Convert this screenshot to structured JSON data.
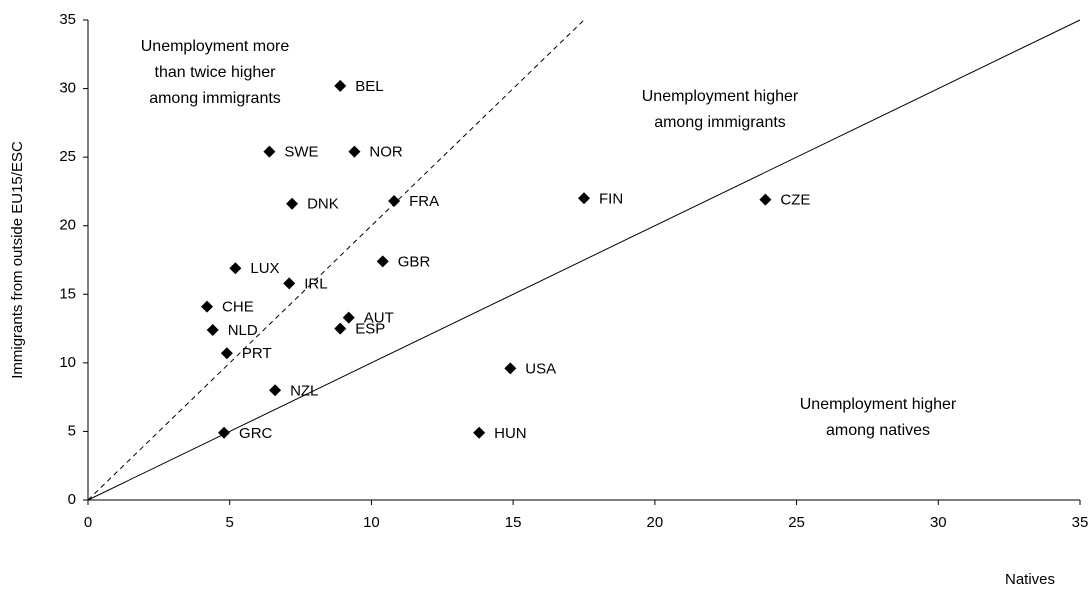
{
  "chart_data": {
    "type": "scatter",
    "x_label": "Natives",
    "y_label": "Immigrants from outside EU15/ESC",
    "labels": [
      "BEL",
      "SWE",
      "NOR",
      "DNK",
      "FRA",
      "FIN",
      "CZE",
      "LUX",
      "GBR",
      "IRL",
      "CHE",
      "AUT",
      "NLD",
      "ESP",
      "PRT",
      "USA",
      "NZL",
      "GRC",
      "HUN"
    ],
    "x": [
      8.9,
      6.4,
      9.4,
      7.2,
      10.8,
      17.5,
      23.9,
      5.2,
      10.4,
      7.1,
      4.2,
      9.2,
      4.4,
      8.9,
      4.9,
      14.9,
      6.6,
      4.8,
      13.8
    ],
    "y": [
      30.2,
      25.4,
      25.4,
      21.6,
      21.8,
      22.0,
      21.9,
      16.9,
      17.4,
      15.8,
      14.1,
      13.3,
      12.4,
      12.5,
      10.7,
      9.6,
      8.0,
      4.9,
      4.9
    ],
    "color": "#000000",
    "xlim": [
      0,
      35
    ],
    "ylim": [
      0,
      35
    ],
    "xticks": [
      0,
      5,
      10,
      15,
      20,
      25,
      30,
      35
    ],
    "yticks": [
      0,
      5,
      10,
      15,
      20,
      25,
      30,
      35
    ],
    "reference_lines": [
      {
        "slope": 1,
        "style": "solid"
      },
      {
        "slope": 2,
        "style": "dashed"
      }
    ],
    "annotations": [
      [
        "Unemployment more",
        "than twice higher",
        "among immigrants"
      ],
      [
        "Unemployment higher",
        "among immigrants"
      ],
      [
        "Unemployment higher",
        "among natives"
      ]
    ]
  }
}
